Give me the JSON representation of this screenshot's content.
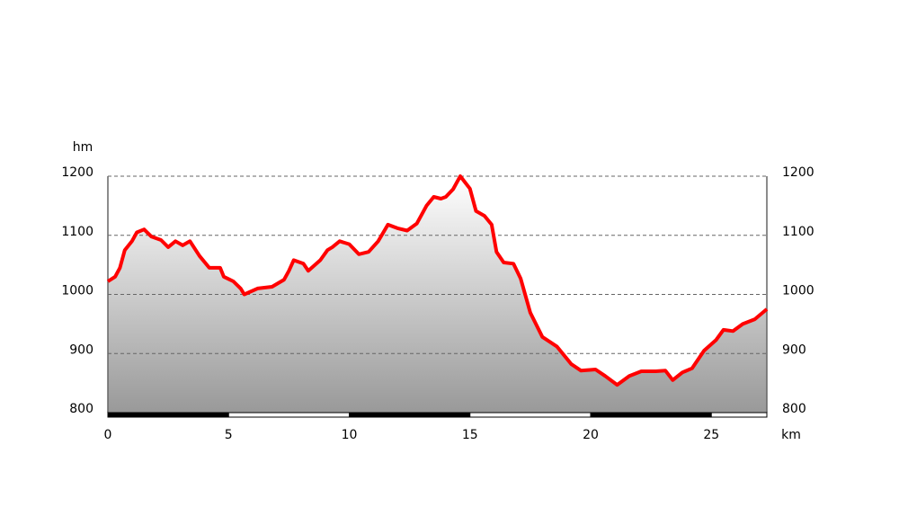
{
  "chart_data": {
    "type": "area-line",
    "y_axis_label": "hm",
    "x_axis_label": "km",
    "color": "#ff0000",
    "x": [
      0,
      0.3,
      0.5,
      0.7,
      1.0,
      1.2,
      1.5,
      1.8,
      2.2,
      2.5,
      2.8,
      3.1,
      3.4,
      3.8,
      4.2,
      4.65,
      4.8,
      5.2,
      5.5,
      5.65,
      6.2,
      6.8,
      7.3,
      7.5,
      7.7,
      8.1,
      8.3,
      8.8,
      9.1,
      9.3,
      9.6,
      10.0,
      10.4,
      10.8,
      11.2,
      11.6,
      12.0,
      12.4,
      12.8,
      13.2,
      13.5,
      13.8,
      14.0,
      14.3,
      14.6,
      15.0,
      15.25,
      15.6,
      15.9,
      16.1,
      16.4,
      16.8,
      17.1,
      17.5,
      18.0,
      18.6,
      19.2,
      19.6,
      20.2,
      20.6,
      21.1,
      21.6,
      22.1,
      22.7,
      23.1,
      23.4,
      23.8,
      24.2,
      24.7,
      25.2,
      25.5,
      25.9,
      26.3,
      26.8,
      27.3
    ],
    "y": [
      1022,
      1030,
      1045,
      1075,
      1090,
      1105,
      1110,
      1098,
      1092,
      1080,
      1090,
      1083,
      1090,
      1065,
      1045,
      1045,
      1030,
      1022,
      1010,
      1000,
      1010,
      1013,
      1025,
      1040,
      1058,
      1052,
      1040,
      1058,
      1075,
      1080,
      1090,
      1085,
      1068,
      1072,
      1090,
      1118,
      1112,
      1108,
      1120,
      1150,
      1165,
      1162,
      1165,
      1178,
      1200,
      1179,
      1141,
      1133,
      1118,
      1072,
      1054,
      1052,
      1027,
      969,
      928,
      912,
      882,
      871,
      873,
      862,
      847,
      862,
      870,
      870,
      871,
      855,
      868,
      875,
      905,
      923,
      940,
      938,
      950,
      958,
      975
    ],
    "xlim": [
      0,
      27.3
    ],
    "ylim": [
      800,
      1200
    ],
    "xticks": [
      0,
      5,
      10,
      15,
      20,
      25
    ],
    "yticks": [
      800,
      900,
      1000,
      1100,
      1200
    ],
    "grid": true
  }
}
